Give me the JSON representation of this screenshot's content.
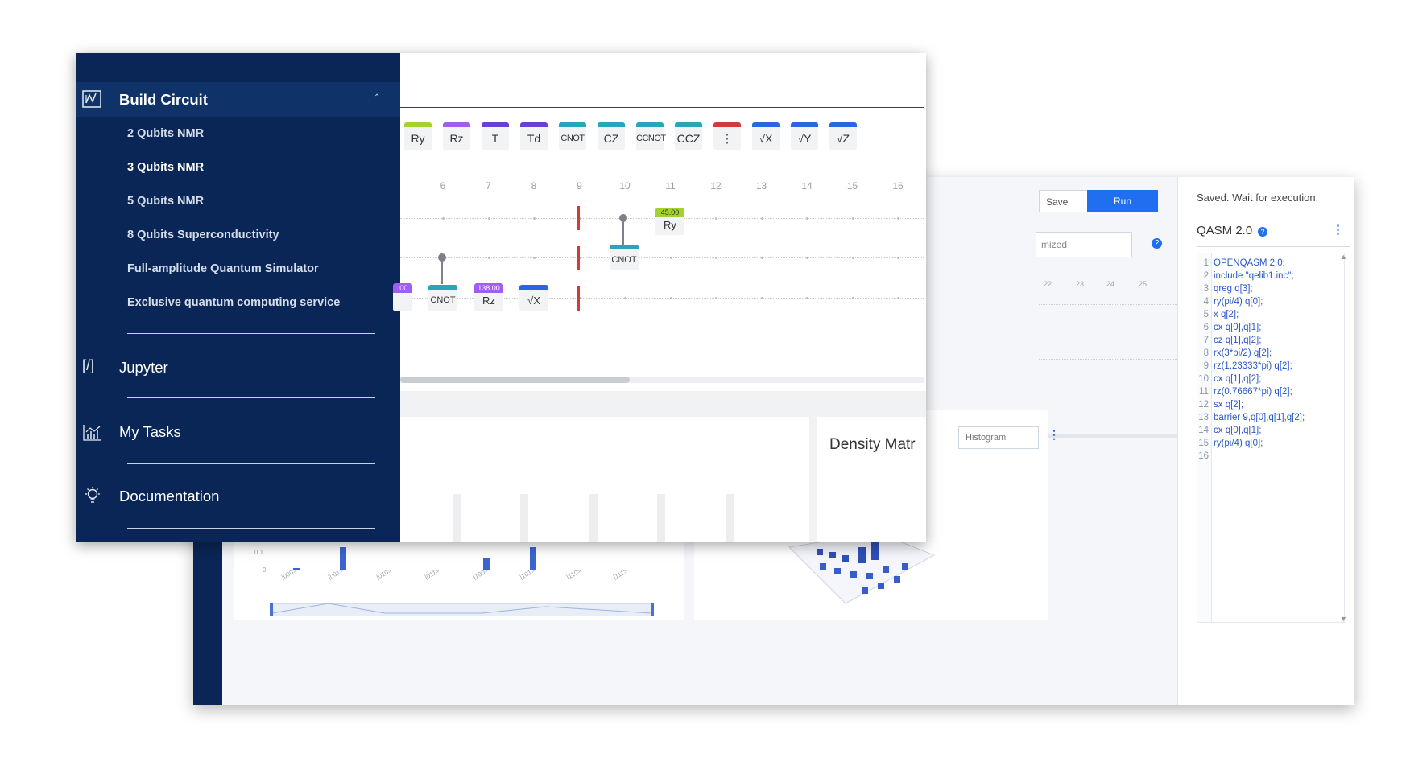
{
  "sidebar": {
    "build_circuit": {
      "label": "Build Circuit",
      "icon": "circuit-icon"
    },
    "sub_items": [
      {
        "label": "2 Qubits NMR"
      },
      {
        "label": "3 Qubits NMR"
      },
      {
        "label": "5 Qubits NMR"
      },
      {
        "label": "8 Qubits Superconductivity"
      },
      {
        "label": "Full-amplitude Quantum Simulator"
      },
      {
        "label": "Exclusive quantum computing service"
      }
    ],
    "nav": [
      {
        "label": "Jupyter",
        "icon": "[/]"
      },
      {
        "label": "My Tasks",
        "icon": "chart-icon"
      },
      {
        "label": "Documentation",
        "icon": "lightbulb-icon"
      }
    ]
  },
  "gates": [
    {
      "label": "Ry",
      "color": "#a3d32f"
    },
    {
      "label": "Rz",
      "color": "#a15cf0"
    },
    {
      "label": "T",
      "color": "#6a3fd8"
    },
    {
      "label": "Td",
      "color": "#6a3fd8"
    },
    {
      "label": "CNOT",
      "color": "#2aa4b8"
    },
    {
      "label": "CZ",
      "color": "#2aa4b8"
    },
    {
      "label": "CCNOT",
      "color": "#2aa4b8"
    },
    {
      "label": "CCZ",
      "color": "#2aa4b8"
    },
    {
      "label": "⋮",
      "color": "#d43a3a"
    },
    {
      "label": "√X",
      "color": "#2a66e0"
    },
    {
      "label": "√Y",
      "color": "#2a66e0"
    },
    {
      "label": "√Z",
      "color": "#2a66e0"
    }
  ],
  "columns": [
    "6",
    "7",
    "8",
    "9",
    "10",
    "11",
    "12",
    "13",
    "14",
    "15",
    "16"
  ],
  "circuit": {
    "q0_ry_param": "45.00",
    "q0_ry_label": "Ry",
    "q1_cnot_label": "CNOT",
    "q2_partial_param": ".00",
    "q2_cnot_label": "CNOT",
    "q2_rz_param": "138.00",
    "q2_rz_label": "Rz",
    "q2_sx_label": "√X"
  },
  "density": {
    "title": "Density Matr"
  },
  "back": {
    "save": "Save",
    "run": "Run",
    "status": "Saved. Wait for execution.",
    "opt_select": "mized",
    "qasm_title": "QASM 2.0",
    "scale_nums": [
      "22",
      "23",
      "24",
      "25"
    ],
    "hist_select": "Histogram",
    "code": [
      "OPENQASM 2.0;",
      "include \"qelib1.inc\";",
      "qreg q[3];",
      "ry(pi/4) q[0];",
      "x q[2];",
      "cx q[0],q[1];",
      "cz q[1],q[2];",
      "rx(3*pi/2) q[2];",
      "rz(1.23333*pi) q[2];",
      "cx q[1],q[2];",
      "rz(0.76667*pi) q[2];",
      "sx q[2];",
      "barrier 9,q[0],q[1],q[2];",
      "cx q[0],q[1];",
      "ry(pi/4) q[0];",
      ""
    ],
    "hist_x": [
      "|000>",
      "|001>",
      "|010>",
      "|011>",
      "|100>",
      "|101>",
      "|110>",
      "|111>"
    ],
    "hist_y": [
      "0.1",
      "0"
    ]
  },
  "colors": {
    "sidebar_bg": "#0a2656",
    "accent": "#1f6ff0",
    "barrier": "#d03b3b"
  }
}
